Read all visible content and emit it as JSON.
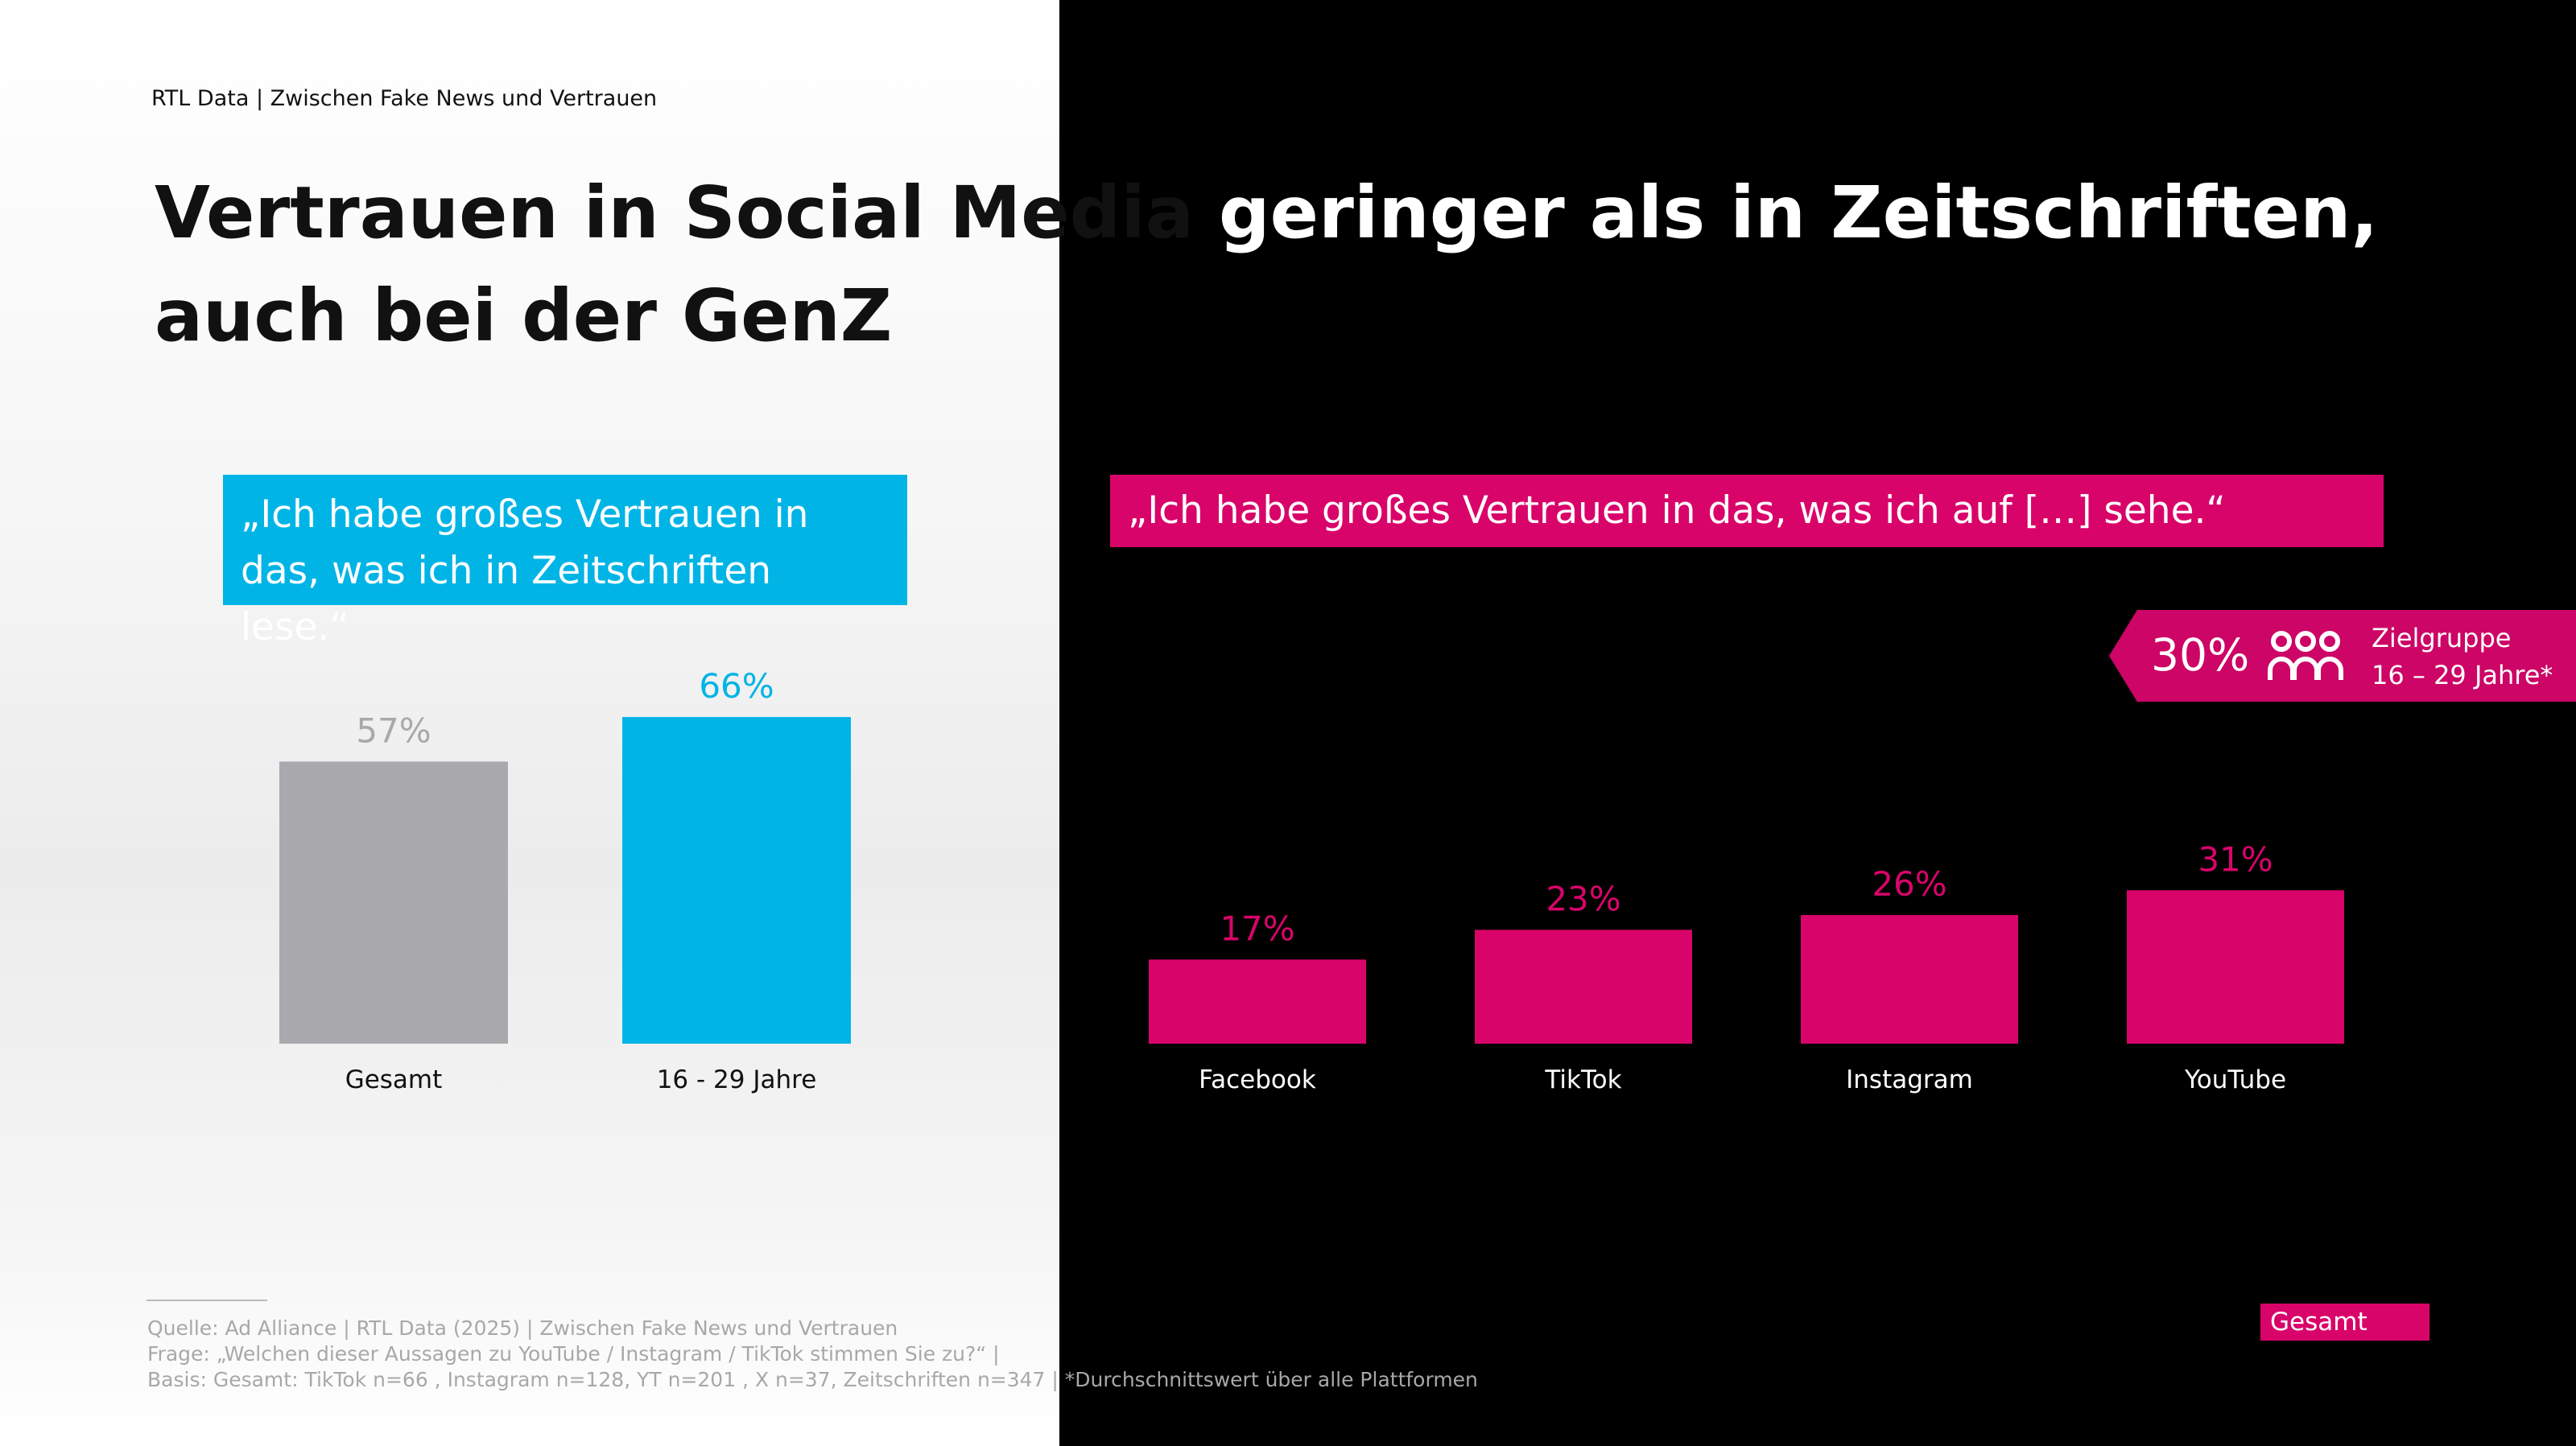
{
  "header": {
    "overline": "RTL Data | Zwischen Fake News und Vertrauen",
    "title": "Vertrauen in Social Media geringer als in Zeitschriften, auch bei der GenZ"
  },
  "colors": {
    "gray_bar": "#a9a8ad",
    "cyan": "#00b4e6",
    "magenta": "#d9046a",
    "tag_bg": "#cc0566"
  },
  "quotes": {
    "magazines": "„Ich habe großes Vertrauen in das, was ich in Zeitschriften lese.“",
    "social": "„Ich habe großes Vertrauen in das, was ich auf […] sehe.“"
  },
  "highlight": {
    "value": "30%",
    "icon": "people-group-icon",
    "line1": "Zielgruppe",
    "line2": "16 – 29 Jahre*"
  },
  "chart_data": [
    {
      "type": "bar",
      "categories": [
        "Gesamt",
        "16 - 29 Jahre"
      ],
      "values": [
        57,
        66
      ],
      "value_labels": [
        "57%",
        "66%"
      ],
      "unit": "%",
      "ylim": [
        0,
        100
      ],
      "colors": [
        "#a9a8ad",
        "#00b4e6"
      ]
    },
    {
      "type": "bar",
      "categories": [
        "Facebook",
        "TikTok",
        "Instagram",
        "YouTube"
      ],
      "values": [
        17,
        23,
        26,
        31
      ],
      "value_labels": [
        "17%",
        "23%",
        "26%",
        "31%"
      ],
      "unit": "%",
      "ylim": [
        0,
        100
      ],
      "colors": [
        "#d9046a",
        "#d9046a",
        "#d9046a",
        "#d9046a"
      ],
      "legend": "Gesamt"
    }
  ],
  "footnote": {
    "source": "Quelle: Ad Alliance | RTL Data (2025) | Zwischen Fake News und Vertrauen",
    "question": "Frage: „Welchen dieser Aussagen zu YouTube / Instagram / TikTok stimmen Sie zu?“ |",
    "basis": "Basis: Gesamt: TikTok n=66 , Instagram n=128, YT n=201 , X n=37, Zeitschriften n=347 | *Durchschnittswert über alle Plattformen"
  }
}
